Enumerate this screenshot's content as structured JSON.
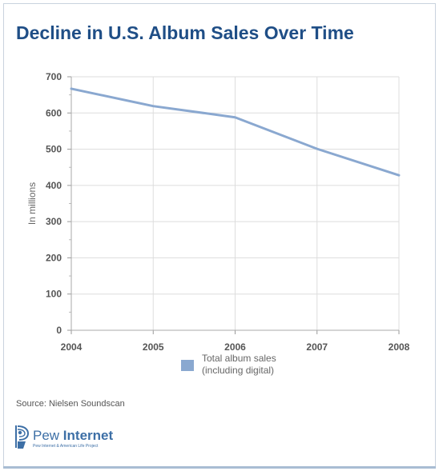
{
  "title": "Decline in U.S. Album Sales Over Time",
  "source": "Source: Nielsen Soundscan",
  "logo": {
    "name_light": "Pew ",
    "name_bold": "Internet",
    "tagline": "Pew Internet & American Life Project"
  },
  "colors": {
    "title": "#1f4e86",
    "series": "#8aa8d0",
    "grid": "#dddddd",
    "axis": "#555555"
  },
  "chart_data": {
    "type": "line",
    "title": "Decline in U.S. Album Sales Over Time",
    "xlabel": "",
    "ylabel": "In millions",
    "categories": [
      "2004",
      "2005",
      "2006",
      "2007",
      "2008"
    ],
    "series": [
      {
        "name": "Total album sales (including digital)",
        "legend_lines": [
          "Total album sales",
          "(including digital)"
        ],
        "values": [
          667,
          619,
          588,
          501,
          428
        ]
      }
    ],
    "ylim": [
      0,
      700
    ],
    "yticks": [
      0,
      100,
      200,
      300,
      400,
      500,
      600,
      700
    ],
    "grid": true,
    "legend_position": "bottom-center"
  }
}
